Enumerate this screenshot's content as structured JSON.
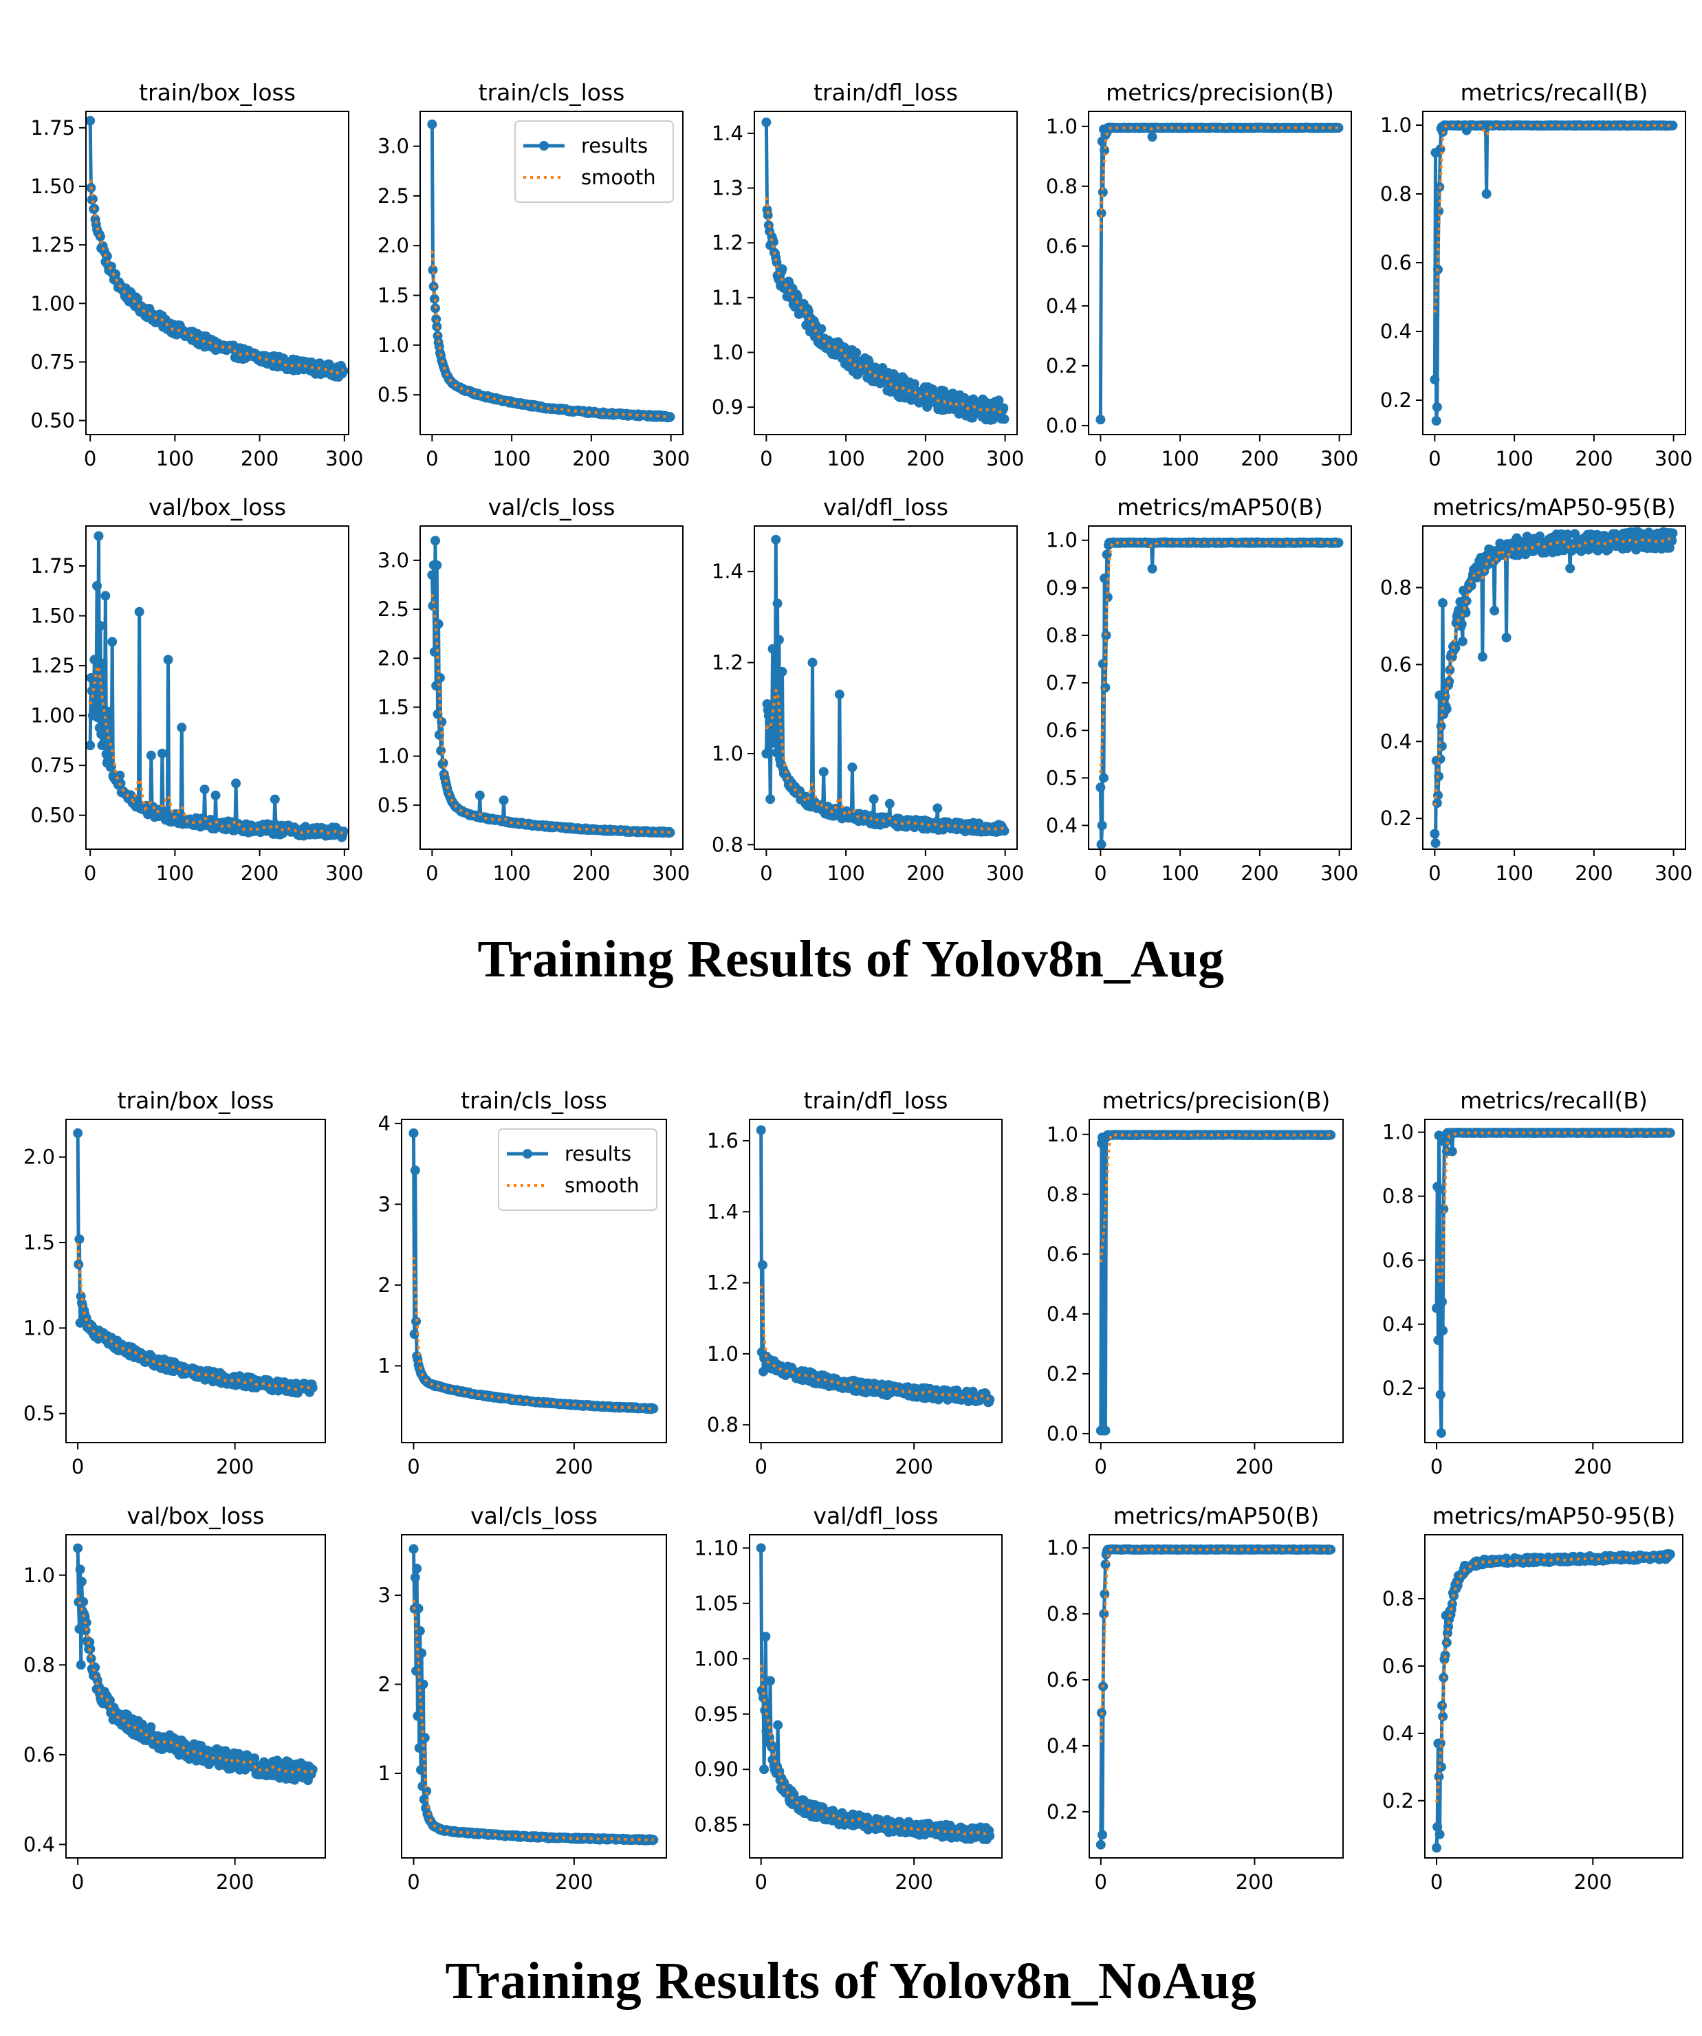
{
  "page": {
    "title_aug": "Training Results of Yolov8n_Aug",
    "title_noaug": "Training Results of Yolov8n_NoAug",
    "colors": {
      "results": "#1f77b4",
      "smooth": "#ff7f0e",
      "axes": "#000000"
    }
  },
  "legend": {
    "results_label": "results",
    "smooth_label": "smooth"
  },
  "chart_data": [
    {
      "group": "aug",
      "type": "line",
      "title": "train/box_loss",
      "xlim": [
        -5,
        305
      ],
      "ylim": [
        0.44,
        1.82
      ],
      "xticks": [
        0,
        100,
        200,
        300
      ],
      "yticks": [
        0.5,
        0.75,
        1.0,
        1.25,
        1.5,
        1.75
      ],
      "yfmt": 2,
      "shape": "decay",
      "params": {
        "start": 1.78,
        "a": 0.33,
        "b": 0.47,
        "c": 0.71,
        "tau": 14,
        "e": 0.48,
        "noise": 0.025
      },
      "legend": false
    },
    {
      "group": "aug",
      "type": "line",
      "title": "train/cls_loss",
      "xlim": [
        -15,
        315
      ],
      "ylim": [
        0.1,
        3.35
      ],
      "xticks": [
        0,
        100,
        200,
        300
      ],
      "yticks": [
        0.5,
        1.0,
        1.5,
        2.0,
        2.5,
        3.0
      ],
      "yfmt": 1,
      "shape": "decay",
      "params": {
        "start": 3.22,
        "a": 1.25,
        "b": 0.42,
        "c": 0.25,
        "tau": 7,
        "e": 0.26,
        "noise": 0.012
      },
      "legend": true
    },
    {
      "group": "aug",
      "type": "line",
      "title": "train/dfl_loss",
      "xlim": [
        -15,
        315
      ],
      "ylim": [
        0.85,
        1.44
      ],
      "xticks": [
        0,
        100,
        200,
        300
      ],
      "yticks": [
        0.9,
        1.0,
        1.1,
        1.2,
        1.3,
        1.4
      ],
      "yfmt": 1,
      "shape": "decay",
      "params": {
        "start": 1.42,
        "a": 0.09,
        "b": 0.3,
        "c": 0.87,
        "tau": 10,
        "e": 0.87,
        "noise": 0.02
      },
      "legend": false
    },
    {
      "group": "aug",
      "type": "line",
      "title": "metrics/precision(B)",
      "xlim": [
        -15,
        315
      ],
      "ylim": [
        -0.03,
        1.05
      ],
      "xticks": [
        0,
        100,
        200,
        300
      ],
      "yticks": [
        0.0,
        0.2,
        0.4,
        0.6,
        0.8,
        1.0
      ],
      "yfmt": 1,
      "shape": "sat",
      "params": {
        "base": 0.995,
        "early": [
          0.02,
          0.71,
          0.95,
          0.78,
          0.99,
          0.92,
          0.97,
          0.99,
          0.98,
          0.995
        ],
        "dips": [
          [
            65,
            0.965
          ]
        ]
      },
      "legend": false
    },
    {
      "group": "aug",
      "type": "line",
      "title": "metrics/recall(B)",
      "xlim": [
        -15,
        315
      ],
      "ylim": [
        0.1,
        1.04
      ],
      "xticks": [
        0,
        100,
        200,
        300
      ],
      "yticks": [
        0.2,
        0.4,
        0.6,
        0.8,
        1.0
      ],
      "yfmt": 1,
      "shape": "sat",
      "params": {
        "base": 0.999,
        "early": [
          0.26,
          0.92,
          0.14,
          0.18,
          0.58,
          0.75,
          0.82,
          0.93,
          0.99,
          0.995,
          0.98,
          0.99
        ],
        "dips": [
          [
            65,
            0.8
          ],
          [
            40,
            0.985
          ]
        ]
      },
      "legend": false
    },
    {
      "group": "aug",
      "type": "line",
      "title": "val/box_loss",
      "xlim": [
        -5,
        305
      ],
      "ylim": [
        0.33,
        1.95
      ],
      "xticks": [
        0,
        100,
        200,
        300
      ],
      "yticks": [
        0.5,
        0.75,
        1.0,
        1.25,
        1.5,
        1.75
      ],
      "yfmt": 2,
      "shape": "decay",
      "params": {
        "start": 0.85,
        "a": 0.6,
        "b": 0.2,
        "c": 0.4,
        "tau": 20,
        "e": 0.4,
        "noise": 0.025
      },
      "spikes": [
        [
          3,
          1.0
        ],
        [
          5,
          1.28
        ],
        [
          8,
          1.65
        ],
        [
          10,
          1.9
        ],
        [
          12,
          1.45
        ],
        [
          15,
          1.26
        ],
        [
          18,
          1.6
        ],
        [
          22,
          1.02
        ],
        [
          26,
          1.37
        ],
        [
          35,
          0.7
        ],
        [
          58,
          1.52
        ],
        [
          72,
          0.8
        ],
        [
          85,
          0.81
        ],
        [
          92,
          1.28
        ],
        [
          108,
          0.94
        ],
        [
          135,
          0.63
        ],
        [
          148,
          0.6
        ],
        [
          172,
          0.66
        ],
        [
          218,
          0.58
        ]
      ],
      "legend": false
    },
    {
      "group": "aug",
      "type": "line",
      "title": "val/cls_loss",
      "xlim": [
        -15,
        315
      ],
      "ylim": [
        0.05,
        3.35
      ],
      "xticks": [
        0,
        100,
        200,
        300
      ],
      "yticks": [
        0.5,
        1.0,
        1.5,
        2.0,
        2.5,
        3.0
      ],
      "yfmt": 1,
      "shape": "decay",
      "params": {
        "start": 2.85,
        "a": 2.3,
        "b": 0.3,
        "c": 0.2,
        "tau": 8,
        "e": 0.2,
        "noise": 0.01
      },
      "spikes": [
        [
          2,
          2.95
        ],
        [
          4,
          3.2
        ],
        [
          6,
          2.95
        ],
        [
          8,
          2.35
        ],
        [
          10,
          1.8
        ],
        [
          12,
          1.35
        ],
        [
          14,
          0.93
        ],
        [
          60,
          0.6
        ],
        [
          90,
          0.55
        ]
      ],
      "legend": false
    },
    {
      "group": "aug",
      "type": "line",
      "title": "val/dfl_loss",
      "xlim": [
        -15,
        315
      ],
      "ylim": [
        0.79,
        1.5
      ],
      "xticks": [
        0,
        100,
        200,
        300
      ],
      "yticks": [
        0.8,
        1.0,
        1.2,
        1.4
      ],
      "yfmt": 1,
      "shape": "decay",
      "params": {
        "start": 1.0,
        "a": 0.2,
        "b": 0.08,
        "c": 0.83,
        "tau": 20,
        "e": 0.83,
        "noise": 0.01
      },
      "spikes": [
        [
          5,
          0.9
        ],
        [
          8,
          1.23
        ],
        [
          12,
          1.47
        ],
        [
          14,
          1.33
        ],
        [
          16,
          1.25
        ],
        [
          20,
          1.18
        ],
        [
          58,
          1.2
        ],
        [
          72,
          0.96
        ],
        [
          92,
          1.13
        ],
        [
          108,
          0.97
        ],
        [
          135,
          0.9
        ],
        [
          155,
          0.89
        ],
        [
          215,
          0.88
        ]
      ],
      "legend": false
    },
    {
      "group": "aug",
      "type": "line",
      "title": "metrics/mAP50(B)",
      "xlim": [
        -15,
        315
      ],
      "ylim": [
        0.35,
        1.03
      ],
      "xticks": [
        0,
        100,
        200,
        300
      ],
      "yticks": [
        0.4,
        0.5,
        0.6,
        0.7,
        0.8,
        0.9,
        1.0
      ],
      "yfmt": 1,
      "shape": "sat",
      "params": {
        "base": 0.995,
        "early": [
          0.48,
          0.36,
          0.4,
          0.74,
          0.5,
          0.92,
          0.69,
          0.8,
          0.97,
          0.88,
          0.99,
          0.995
        ],
        "dips": [
          [
            65,
            0.94
          ]
        ]
      },
      "legend": false
    },
    {
      "group": "aug",
      "type": "line",
      "title": "metrics/mAP50-95(B)",
      "xlim": [
        -15,
        315
      ],
      "ylim": [
        0.12,
        0.96
      ],
      "xticks": [
        0,
        100,
        200,
        300
      ],
      "yticks": [
        0.2,
        0.4,
        0.6,
        0.8
      ],
      "yfmt": 1,
      "shape": "rise",
      "params": {
        "start": 0.16,
        "end": 0.925,
        "tau": 22,
        "noise": 0.03,
        "slope": 0.0002
      },
      "spikes": [
        [
          2,
          0.35
        ],
        [
          4,
          0.26
        ],
        [
          6,
          0.52
        ],
        [
          8,
          0.44
        ],
        [
          10,
          0.76
        ],
        [
          20,
          0.62
        ],
        [
          35,
          0.66
        ],
        [
          60,
          0.62
        ],
        [
          75,
          0.74
        ],
        [
          90,
          0.67
        ],
        [
          170,
          0.85
        ]
      ],
      "legend": false
    },
    {
      "group": "noaug",
      "type": "line",
      "title": "train/box_loss",
      "xlim": [
        -15,
        315
      ],
      "ylim": [
        0.33,
        2.22
      ],
      "xticks": [
        0,
        200
      ],
      "yticks": [
        0.5,
        1.0,
        1.5,
        2.0
      ],
      "yfmt": 1,
      "shape": "decay",
      "params": {
        "start": 2.14,
        "a": 0.45,
        "b": 0.4,
        "c": 0.65,
        "tau": 4,
        "e": 0.41,
        "noise": 0.03
      },
      "spikes": [
        [
          2,
          1.52
        ],
        [
          3,
          1.03
        ]
      ],
      "legend": false
    },
    {
      "group": "noaug",
      "type": "line",
      "title": "train/cls_loss",
      "xlim": [
        -15,
        315
      ],
      "ylim": [
        0.05,
        4.05
      ],
      "xticks": [
        0,
        200
      ],
      "yticks": [
        1,
        2,
        3,
        4
      ],
      "yfmt": 0,
      "shape": "decay",
      "params": {
        "start": 3.88,
        "a": 0.7,
        "b": 0.35,
        "c": 0.48,
        "tau": 5,
        "e": 0.26,
        "noise": 0.01
      },
      "spikes": [
        [
          2,
          3.42
        ],
        [
          3,
          1.55
        ],
        [
          4,
          1.12
        ]
      ],
      "legend": true
    },
    {
      "group": "noaug",
      "type": "line",
      "title": "train/dfl_loss",
      "xlim": [
        -15,
        315
      ],
      "ylim": [
        0.75,
        1.66
      ],
      "xticks": [
        0,
        200
      ],
      "yticks": [
        0.8,
        1.0,
        1.2,
        1.4,
        1.6
      ],
      "yfmt": 1,
      "shape": "decay",
      "params": {
        "start": 1.63,
        "a": 0.05,
        "b": 0.1,
        "c": 0.88,
        "tau": 3,
        "e": 0.82,
        "noise": 0.015
      },
      "spikes": [
        [
          2,
          1.25
        ],
        [
          3,
          0.95
        ]
      ],
      "legend": false
    },
    {
      "group": "noaug",
      "type": "line",
      "title": "metrics/precision(B)",
      "xlim": [
        -15,
        315
      ],
      "ylim": [
        -0.03,
        1.05
      ],
      "xticks": [
        0,
        200
      ],
      "yticks": [
        0.0,
        0.2,
        0.4,
        0.6,
        0.8,
        1.0
      ],
      "yfmt": 1,
      "shape": "sat",
      "params": {
        "base": 0.998,
        "early": [
          0.01,
          0.97,
          0.99,
          0.01,
          0.98,
          0.99,
          0.01,
          0.99,
          0.995,
          0.998
        ],
        "dips": []
      },
      "legend": false
    },
    {
      "group": "noaug",
      "type": "line",
      "title": "metrics/recall(B)",
      "xlim": [
        -15,
        315
      ],
      "ylim": [
        0.03,
        1.04
      ],
      "xticks": [
        0,
        200
      ],
      "yticks": [
        0.2,
        0.4,
        0.6,
        0.8,
        1.0
      ],
      "yfmt": 1,
      "shape": "sat",
      "params": {
        "base": 0.998,
        "early": [
          0.45,
          0.83,
          0.35,
          0.99,
          0.82,
          0.18,
          0.06,
          0.47,
          0.38,
          0.76,
          0.97,
          0.99,
          0.97,
          0.94,
          0.998
        ],
        "dips": [
          [
            20,
            0.94
          ]
        ]
      },
      "legend": false
    },
    {
      "group": "noaug",
      "type": "line",
      "title": "val/box_loss",
      "xlim": [
        -15,
        315
      ],
      "ylim": [
        0.37,
        1.09
      ],
      "xticks": [
        0,
        200
      ],
      "yticks": [
        0.4,
        0.6,
        0.8,
        1.0
      ],
      "yfmt": 1,
      "shape": "decay",
      "params": {
        "start": 1.06,
        "a": 0.37,
        "b": 0.18,
        "c": 0.57,
        "tau": 12,
        "e": 0.41,
        "noise": 0.02
      },
      "spikes": [
        [
          1,
          0.94
        ],
        [
          2,
          0.88
        ],
        [
          4,
          0.8
        ],
        [
          6,
          0.92
        ]
      ],
      "legend": false
    },
    {
      "group": "noaug",
      "type": "line",
      "title": "val/cls_loss",
      "xlim": [
        -15,
        315
      ],
      "ylim": [
        0.05,
        3.68
      ],
      "xticks": [
        0,
        200
      ],
      "yticks": [
        1,
        2,
        3
      ],
      "yfmt": 0,
      "shape": "decay",
      "params": {
        "start": 3.52,
        "a": 2.9,
        "b": 0.15,
        "c": 0.25,
        "tau": 6,
        "e": 0.2,
        "noise": 0.01
      },
      "spikes": [
        [
          2,
          3.2
        ],
        [
          4,
          3.3
        ],
        [
          6,
          2.85
        ],
        [
          8,
          2.6
        ],
        [
          10,
          2.35
        ],
        [
          12,
          2.0
        ],
        [
          14,
          1.4
        ],
        [
          16,
          0.8
        ]
      ],
      "legend": false
    },
    {
      "group": "noaug",
      "type": "line",
      "title": "val/dfl_loss",
      "xlim": [
        -15,
        315
      ],
      "ylim": [
        0.82,
        1.112
      ],
      "xticks": [
        0,
        200
      ],
      "yticks": [
        0.85,
        0.9,
        0.95,
        1.0,
        1.05,
        1.1
      ],
      "yfmt": 2,
      "shape": "decay",
      "params": {
        "start": 1.1,
        "a": 0.1,
        "b": 0.04,
        "c": 0.84,
        "tau": 15,
        "e": 0.835,
        "noise": 0.006
      },
      "spikes": [
        [
          2,
          0.97
        ],
        [
          4,
          0.9
        ],
        [
          6,
          1.02
        ],
        [
          8,
          0.96
        ],
        [
          12,
          0.98
        ],
        [
          16,
          0.92
        ],
        [
          22,
          0.94
        ]
      ],
      "legend": false
    },
    {
      "group": "noaug",
      "type": "line",
      "title": "metrics/mAP50(B)",
      "xlim": [
        -15,
        315
      ],
      "ylim": [
        0.06,
        1.04
      ],
      "xticks": [
        0,
        200
      ],
      "yticks": [
        0.2,
        0.4,
        0.6,
        0.8,
        1.0
      ],
      "yfmt": 1,
      "shape": "sat",
      "params": {
        "base": 0.995,
        "early": [
          0.1,
          0.5,
          0.13,
          0.58,
          0.8,
          0.86,
          0.95,
          0.98,
          0.99,
          0.995
        ],
        "dips": []
      },
      "legend": false
    },
    {
      "group": "noaug",
      "type": "line",
      "title": "metrics/mAP50-95(B)",
      "xlim": [
        -15,
        315
      ],
      "ylim": [
        0.03,
        0.99
      ],
      "xticks": [
        0,
        200
      ],
      "yticks": [
        0.2,
        0.4,
        0.6,
        0.8
      ],
      "yfmt": 1,
      "shape": "rise",
      "params": {
        "start": 0.06,
        "end": 0.925,
        "tau": 10,
        "noise": 0.01,
        "slope": 0.0002
      },
      "spikes": [
        [
          2,
          0.37
        ],
        [
          4,
          0.1
        ],
        [
          6,
          0.3
        ],
        [
          8,
          0.45
        ],
        [
          10,
          0.62
        ],
        [
          12,
          0.75
        ]
      ],
      "legend": false
    }
  ]
}
